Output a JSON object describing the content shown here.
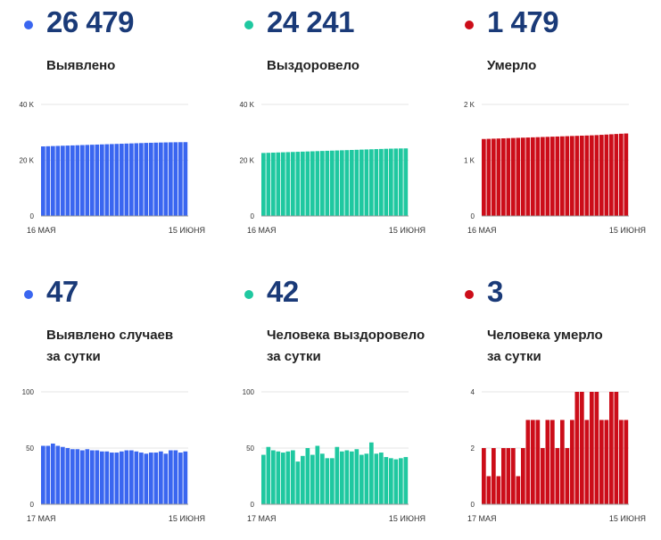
{
  "panels": [
    {
      "value": "26 479",
      "label": [
        "Выявлено"
      ],
      "color": "#3a66f0",
      "chart_data": {
        "type": "bar",
        "x_start": "16 МАЯ",
        "x_end": "15 ИЮНЯ",
        "ylim": [
          0,
          40000
        ],
        "yticks": [
          "0",
          "20 K",
          "40 K"
        ],
        "values": [
          24950,
          25010,
          25070,
          25130,
          25190,
          25250,
          25310,
          25370,
          25430,
          25490,
          25550,
          25610,
          25670,
          25730,
          25790,
          25850,
          25910,
          25970,
          26030,
          26090,
          26150,
          26210,
          26250,
          26300,
          26340,
          26380,
          26410,
          26440,
          26460,
          26479
        ]
      }
    },
    {
      "value": "24 241",
      "label": [
        "Выздоровело"
      ],
      "color": "#1fc8a0",
      "chart_data": {
        "type": "bar",
        "x_start": "16 МАЯ",
        "x_end": "15 ИЮНЯ",
        "ylim": [
          0,
          40000
        ],
        "yticks": [
          "0",
          "20 K",
          "40 K"
        ],
        "values": [
          22600,
          22660,
          22720,
          22780,
          22840,
          22900,
          22960,
          23020,
          23080,
          23140,
          23200,
          23260,
          23320,
          23380,
          23440,
          23500,
          23560,
          23620,
          23680,
          23740,
          23800,
          23860,
          23920,
          23980,
          24040,
          24100,
          24150,
          24190,
          24220,
          24241
        ]
      }
    },
    {
      "value": "1 479",
      "label": [
        "Умерло"
      ],
      "color": "#cc0d19",
      "chart_data": {
        "type": "bar",
        "x_start": "16 МАЯ",
        "x_end": "15 ИЮНЯ",
        "ylim": [
          0,
          2000
        ],
        "yticks": [
          "0",
          "1 K",
          "2 K"
        ],
        "values": [
          1380,
          1383,
          1386,
          1389,
          1392,
          1395,
          1398,
          1401,
          1404,
          1407,
          1410,
          1413,
          1416,
          1419,
          1422,
          1425,
          1428,
          1431,
          1434,
          1437,
          1440,
          1443,
          1446,
          1450,
          1455,
          1460,
          1465,
          1470,
          1475,
          1479
        ]
      }
    },
    {
      "value": "47",
      "label": [
        "Выявлено случаев",
        "за сутки"
      ],
      "color": "#3a66f0",
      "chart_data": {
        "type": "bar",
        "x_start": "17 МАЯ",
        "x_end": "15 ИЮНЯ",
        "ylim": [
          0,
          100
        ],
        "yticks": [
          "0",
          "50",
          "100"
        ],
        "values": [
          52,
          52,
          54,
          52,
          51,
          50,
          49,
          49,
          48,
          49,
          48,
          48,
          47,
          47,
          46,
          46,
          47,
          48,
          48,
          47,
          46,
          45,
          46,
          46,
          47,
          45,
          48,
          48,
          46,
          47
        ]
      }
    },
    {
      "value": "42",
      "label": [
        "Человека выздоровело",
        "за сутки"
      ],
      "color": "#1fc8a0",
      "chart_data": {
        "type": "bar",
        "x_start": "17 МАЯ",
        "x_end": "15 ИЮНЯ",
        "ylim": [
          0,
          100
        ],
        "yticks": [
          "0",
          "50",
          "100"
        ],
        "values": [
          44,
          51,
          48,
          47,
          46,
          47,
          48,
          38,
          43,
          50,
          44,
          52,
          45,
          41,
          41,
          51,
          47,
          48,
          47,
          49,
          44,
          45,
          55,
          45,
          46,
          42,
          41,
          40,
          41,
          42
        ]
      }
    },
    {
      "value": "3",
      "label": [
        "Человека умерло",
        "за сутки"
      ],
      "color": "#cc0d19",
      "chart_data": {
        "type": "bar",
        "x_start": "17 МАЯ",
        "x_end": "15 ИЮНЯ",
        "ylim": [
          0,
          4
        ],
        "yticks": [
          "0",
          "2",
          "4"
        ],
        "values": [
          2,
          1,
          2,
          1,
          2,
          2,
          2,
          1,
          2,
          3,
          3,
          3,
          2,
          3,
          3,
          2,
          3,
          2,
          3,
          4,
          4,
          3,
          4,
          4,
          3,
          3,
          4,
          4,
          3,
          3
        ]
      }
    }
  ]
}
